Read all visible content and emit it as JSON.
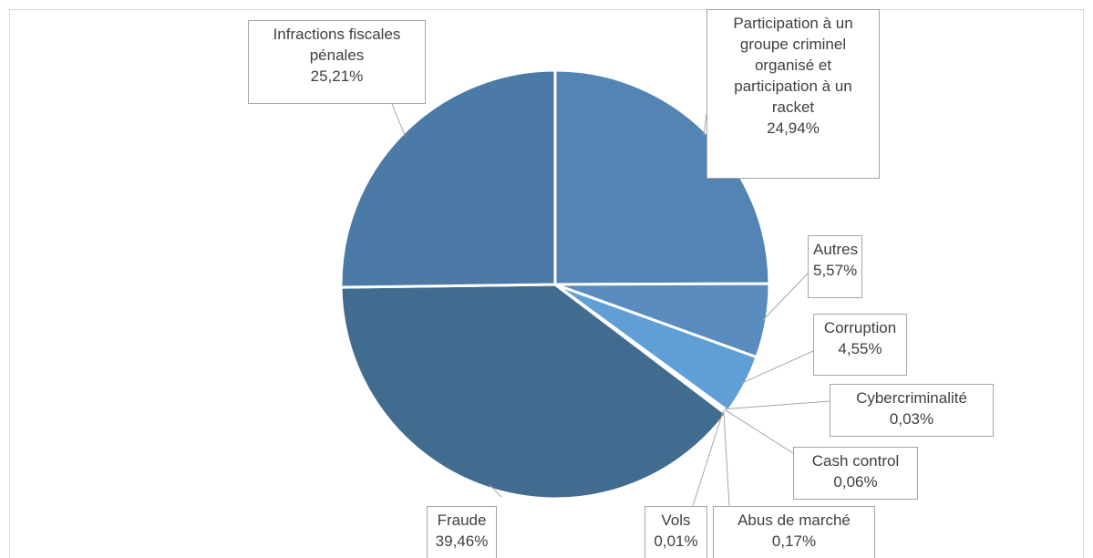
{
  "chart_data": {
    "type": "pie",
    "categories": [
      "Participation à un groupe criminel organisé et participation à un racket",
      "Autres",
      "Corruption",
      "Cybercriminalité",
      "Cash control",
      "Abus de marché",
      "Vols",
      "Fraude",
      "Infractions fiscales pénales"
    ],
    "values": [
      24.94,
      5.57,
      4.55,
      0.03,
      0.06,
      0.17,
      0.01,
      39.46,
      25.21
    ],
    "value_labels": [
      "24,94%",
      "5,57%",
      "4,55%",
      "0,03%",
      "0,06%",
      "0,17%",
      "0,01%",
      "39,46%",
      "25,21%"
    ],
    "colors": [
      "#5384b4",
      "#5a8cc0",
      "#5f9fd6",
      "#5a8cc0",
      "#5384b4",
      "#4a7aa5",
      "#426b90",
      "#426b90",
      "#4a7aa5"
    ]
  }
}
